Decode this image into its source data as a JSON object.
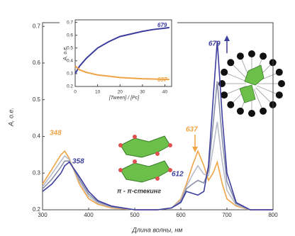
{
  "chart_data": [
    {
      "type": "line",
      "x_label": "Длина волны, нм",
      "y_label": "A, о.е.",
      "x": [
        300,
        320,
        340,
        348,
        358,
        380,
        400,
        420,
        450,
        500,
        550,
        580,
        600,
        612,
        625,
        637,
        650,
        660,
        670,
        679,
        690,
        700,
        720,
        750,
        800
      ],
      "series": [
        {
          "color": "#f0a446",
          "values": [
            0.27,
            0.31,
            0.35,
            0.36,
            0.34,
            0.27,
            0.23,
            0.215,
            0.205,
            0.2,
            0.2,
            0.205,
            0.23,
            0.27,
            0.32,
            0.36,
            0.32,
            0.28,
            0.3,
            0.33,
            0.27,
            0.23,
            0.21,
            0.2,
            0.2
          ]
        },
        {
          "color": "#b8bcc8",
          "values": [
            0.263,
            0.297,
            0.333,
            0.347,
            0.337,
            0.277,
            0.237,
            0.218,
            0.207,
            0.2,
            0.2,
            0.205,
            0.227,
            0.263,
            0.295,
            0.32,
            0.297,
            0.293,
            0.367,
            0.44,
            0.33,
            0.253,
            0.213,
            0.2,
            0.2
          ]
        },
        {
          "color": "#8a8fa8",
          "values": [
            0.257,
            0.283,
            0.317,
            0.333,
            0.333,
            0.283,
            0.243,
            0.222,
            0.208,
            0.2,
            0.2,
            0.205,
            0.223,
            0.257,
            0.27,
            0.28,
            0.273,
            0.307,
            0.433,
            0.55,
            0.39,
            0.277,
            0.217,
            0.2,
            0.2
          ]
        },
        {
          "color": "#3d3d9e",
          "values": [
            0.25,
            0.27,
            0.3,
            0.32,
            0.33,
            0.29,
            0.25,
            0.225,
            0.21,
            0.2,
            0.2,
            0.205,
            0.22,
            0.25,
            0.245,
            0.24,
            0.25,
            0.32,
            0.5,
            0.66,
            0.45,
            0.3,
            0.22,
            0.2,
            0.2
          ]
        }
      ],
      "xlim": [
        300,
        800
      ],
      "xticks": [
        300,
        400,
        500,
        600,
        700,
        800
      ],
      "ylim": [
        0.2,
        0.71
      ],
      "yticks": [
        0.2,
        0.3,
        0.4,
        0.5,
        0.6,
        0.7
      ],
      "annotations": [
        "348",
        "358",
        "637",
        "612",
        "679",
        "π - π-стекинг"
      ]
    },
    {
      "type": "line",
      "x_label": "[Tween] / [Pc]",
      "y_label": "A, о.е.",
      "x": [
        0,
        2,
        5,
        10,
        15,
        20,
        25,
        30,
        35,
        40,
        42
      ],
      "series": [
        {
          "color": "#3d3d9e",
          "values": [
            0.3,
            0.36,
            0.42,
            0.5,
            0.55,
            0.59,
            0.61,
            0.63,
            0.645,
            0.655,
            0.66
          ]
        },
        {
          "color": "#f0a446",
          "values": [
            0.36,
            0.33,
            0.31,
            0.29,
            0.28,
            0.27,
            0.265,
            0.26,
            0.258,
            0.255,
            0.255
          ]
        }
      ],
      "xlim": [
        0,
        43
      ],
      "xticks": [
        0,
        10,
        20,
        30,
        40
      ],
      "ylim": [
        0.2,
        0.72
      ],
      "yticks": [
        0.2,
        0.3,
        0.4,
        0.5,
        0.6,
        0.7
      ],
      "annotations": [
        "679",
        "637"
      ]
    }
  ]
}
